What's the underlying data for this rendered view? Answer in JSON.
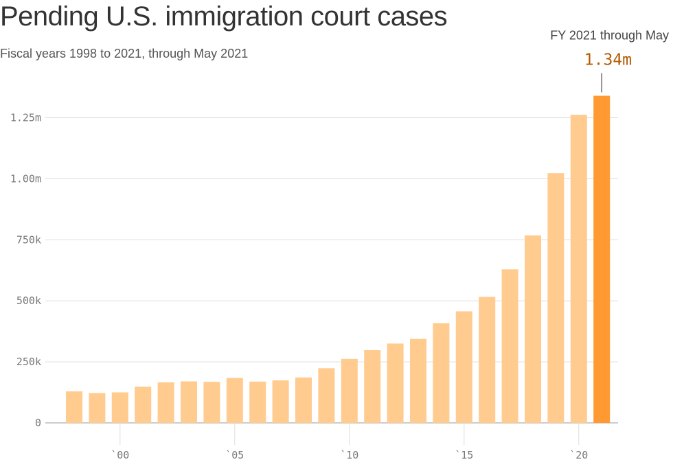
{
  "title": "Pending U.S. immigration court cases",
  "subtitle": "Fiscal years 1998 to 2021, through May 2021",
  "colors": {
    "bar": "#ffcb8e",
    "highlight": "#ff9a33",
    "grid": "#dddddd",
    "axis": "#999999"
  },
  "chart_data": {
    "type": "bar",
    "title": "Pending U.S. immigration court cases",
    "subtitle": "Fiscal years 1998 to 2021, through May 2021",
    "categories": [
      1998,
      1999,
      2000,
      2001,
      2002,
      2003,
      2004,
      2005,
      2006,
      2007,
      2008,
      2009,
      2010,
      2011,
      2012,
      2013,
      2014,
      2015,
      2016,
      2017,
      2018,
      2019,
      2020,
      2021
    ],
    "values": [
      129000,
      122000,
      125000,
      148000,
      166000,
      170000,
      168000,
      184000,
      169000,
      174000,
      186000,
      224000,
      262000,
      298000,
      325000,
      344000,
      408000,
      457000,
      516000,
      629000,
      768000,
      1023000,
      1262000,
      1340000
    ],
    "ylim": [
      0,
      1340000
    ],
    "y_ticks": [
      {
        "value": 0,
        "label": "0"
      },
      {
        "value": 250000,
        "label": "250k"
      },
      {
        "value": 500000,
        "label": "500k"
      },
      {
        "value": 750000,
        "label": "750k"
      },
      {
        "value": 1000000,
        "label": "1.00m"
      },
      {
        "value": 1250000,
        "label": "1.25m"
      }
    ],
    "x_ticks": [
      {
        "value": 2000,
        "label": "`00"
      },
      {
        "value": 2005,
        "label": "`05"
      },
      {
        "value": 2010,
        "label": "`10"
      },
      {
        "value": 2015,
        "label": "`15"
      },
      {
        "value": 2020,
        "label": "`20"
      }
    ],
    "grid": true,
    "highlight_category": 2021,
    "annotation": {
      "label": "FY 2021 through May",
      "value_label": "1.34m"
    }
  }
}
